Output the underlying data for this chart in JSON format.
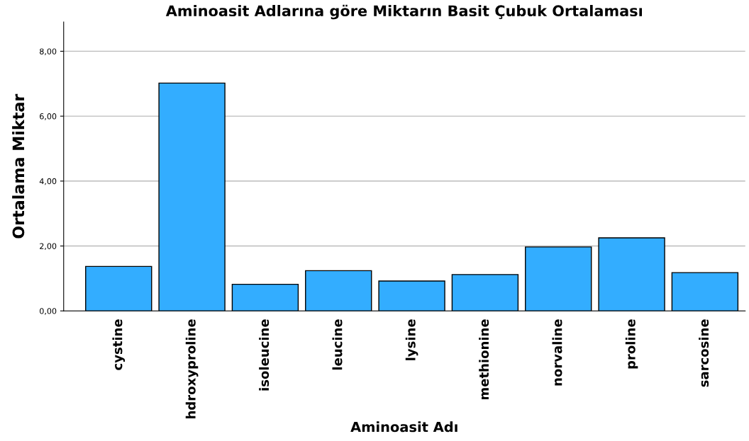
{
  "chart_data": {
    "type": "bar",
    "title": "Aminoasit Adlarına göre Miktarın Basit Çubuk Ortalaması",
    "xlabel": "Aminoasit Adı",
    "ylabel": "Ortalama Miktar",
    "categories": [
      "cystine",
      "hdroxyproline",
      "isoleucine",
      "leucine",
      "lysine",
      "methionine",
      "norvaline",
      "proline",
      "sarcosine"
    ],
    "values": [
      1.37,
      7.02,
      0.82,
      1.24,
      0.92,
      1.12,
      1.97,
      2.25,
      1.18
    ],
    "color": "#33adff",
    "ylim": [
      0,
      8.9
    ],
    "yticks": [
      {
        "value": 0,
        "label": "0,00"
      },
      {
        "value": 2,
        "label": "2,00"
      },
      {
        "value": 4,
        "label": "4,00"
      },
      {
        "value": 6,
        "label": "6,00"
      },
      {
        "value": 8,
        "label": "8,00"
      }
    ],
    "grid": "y"
  }
}
